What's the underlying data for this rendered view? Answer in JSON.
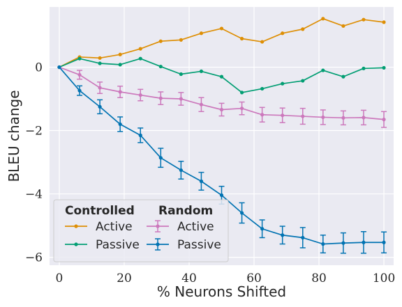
{
  "chart_data": {
    "type": "line",
    "title": "",
    "xlabel": "% Neurons Shifted",
    "ylabel": "BLEU change",
    "xlim": [
      -3,
      103
    ],
    "ylim": [
      -6.25,
      1.9
    ],
    "xticks": [
      0,
      20,
      40,
      60,
      80,
      100
    ],
    "xtick_labels": [
      "0",
      "20",
      "40",
      "60",
      "80",
      "100"
    ],
    "yticks": [
      0,
      -2,
      -4,
      -6
    ],
    "ytick_labels": [
      "0",
      "−2",
      "−4",
      "−6"
    ],
    "grid": true,
    "legend_position": "lower-left",
    "legend_groups": [
      {
        "title": "Controlled",
        "entries": [
          "Active",
          "Passive"
        ]
      },
      {
        "title": "Random",
        "entries": [
          "Active",
          "Passive"
        ]
      }
    ],
    "x": [
      0,
      6.25,
      12.5,
      18.75,
      25,
      31.25,
      37.5,
      43.75,
      50,
      56.25,
      62.5,
      68.75,
      75,
      81.25,
      87.5,
      93.75,
      100
    ],
    "series": [
      {
        "name": "Active",
        "group": "Controlled",
        "color": "#de8f05",
        "error_bars": false,
        "values": [
          0,
          0.32,
          0.29,
          0.4,
          0.58,
          0.82,
          0.86,
          1.07,
          1.22,
          0.9,
          0.8,
          1.07,
          1.2,
          1.53,
          1.3,
          1.5,
          1.42
        ]
      },
      {
        "name": "Passive",
        "group": "Controlled",
        "color": "#029e73",
        "error_bars": false,
        "values": [
          0,
          0.27,
          0.12,
          0.08,
          0.27,
          0.02,
          -0.22,
          -0.13,
          -0.3,
          -0.8,
          -0.68,
          -0.52,
          -0.43,
          -0.1,
          -0.3,
          -0.04,
          -0.02
        ]
      },
      {
        "name": "Active",
        "group": "Random",
        "color": "#cc78bc",
        "error_bars": true,
        "values": [
          0,
          -0.24,
          -0.65,
          -0.78,
          -0.88,
          -0.98,
          -1.0,
          -1.18,
          -1.34,
          -1.3,
          -1.5,
          -1.52,
          -1.55,
          -1.58,
          -1.6,
          -1.59,
          -1.65
        ],
        "errors": [
          0,
          0.14,
          0.18,
          0.18,
          0.18,
          0.2,
          0.2,
          0.22,
          0.2,
          0.2,
          0.23,
          0.23,
          0.25,
          0.23,
          0.22,
          0.23,
          0.25
        ]
      },
      {
        "name": "Passive",
        "group": "Random",
        "color": "#0173b2",
        "error_bars": true,
        "values": [
          0,
          -0.74,
          -1.25,
          -1.8,
          -2.15,
          -2.86,
          -3.25,
          -3.6,
          -4.04,
          -4.6,
          -5.1,
          -5.3,
          -5.38,
          -5.58,
          -5.55,
          -5.53,
          -5.53
        ],
        "errors": [
          0,
          0.15,
          0.22,
          0.23,
          0.23,
          0.3,
          0.28,
          0.28,
          0.28,
          0.32,
          0.28,
          0.28,
          0.32,
          0.28,
          0.32,
          0.34,
          0.33
        ]
      }
    ]
  }
}
